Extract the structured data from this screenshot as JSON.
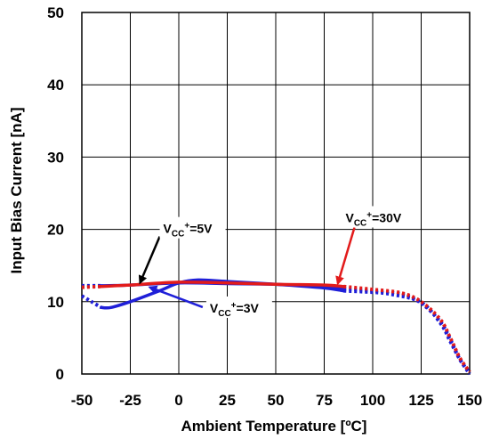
{
  "chart_data": {
    "type": "line",
    "title": "",
    "xlabel": "Ambient Temperature [ºC]",
    "ylabel": "Input Bias Current [nA]",
    "xlim": [
      -50,
      150
    ],
    "ylim": [
      0,
      50
    ],
    "xticks": [
      -50,
      -25,
      0,
      25,
      50,
      75,
      100,
      125,
      150
    ],
    "yticks": [
      0,
      10,
      20,
      30,
      40,
      50
    ],
    "grid": true,
    "series": [
      {
        "name": "VCC+=3V",
        "color": "#1f1fd8",
        "solid": [
          [
            -40,
            9.2
          ],
          [
            -35,
            9.2
          ],
          [
            -25,
            10.0
          ],
          [
            -10,
            11.5
          ],
          [
            0,
            12.6
          ],
          [
            10,
            13.0
          ],
          [
            25,
            12.8
          ],
          [
            50,
            12.4
          ],
          [
            75,
            11.9
          ],
          [
            85,
            11.5
          ]
        ],
        "dotted": [
          [
            -50,
            10.8
          ],
          [
            -45,
            10.0
          ],
          [
            -40,
            9.2
          ],
          [
            85,
            11.5
          ],
          [
            100,
            11.3
          ],
          [
            110,
            11.0
          ],
          [
            125,
            9.9
          ],
          [
            135,
            7.0
          ],
          [
            140,
            4.5
          ],
          [
            145,
            2.0
          ],
          [
            150,
            0.0
          ]
        ]
      },
      {
        "name": "VCC+=5V",
        "color": "#1f1fd8",
        "solid": [
          [
            -40,
            12.2
          ],
          [
            -25,
            12.3
          ],
          [
            0,
            12.6
          ],
          [
            25,
            12.5
          ],
          [
            50,
            12.4
          ],
          [
            75,
            12.0
          ],
          [
            85,
            11.8
          ]
        ],
        "dotted": [
          [
            -50,
            12.2
          ],
          [
            -40,
            12.2
          ],
          [
            85,
            11.8
          ],
          [
            100,
            11.5
          ],
          [
            115,
            11.0
          ],
          [
            125,
            9.8
          ],
          [
            135,
            7.2
          ],
          [
            140,
            4.8
          ],
          [
            145,
            2.0
          ],
          [
            150,
            0.2
          ]
        ]
      },
      {
        "name": "VCC+=30V",
        "color": "#e21b1b",
        "solid": [
          [
            -40,
            12.1
          ],
          [
            -25,
            12.3
          ],
          [
            0,
            12.7
          ],
          [
            25,
            12.6
          ],
          [
            50,
            12.4
          ],
          [
            75,
            12.3
          ],
          [
            85,
            12.1
          ]
        ],
        "dotted": [
          [
            -50,
            12.0
          ],
          [
            -40,
            12.1
          ],
          [
            85,
            12.1
          ],
          [
            100,
            11.7
          ],
          [
            115,
            11.2
          ],
          [
            125,
            10.0
          ],
          [
            135,
            7.5
          ],
          [
            140,
            5.0
          ],
          [
            145,
            2.2
          ],
          [
            150,
            0.3
          ]
        ]
      }
    ],
    "annotations": [
      {
        "id": "5v",
        "base": "V",
        "sub": "CC",
        "sup": "+",
        "tail": "=5V",
        "tx": -8,
        "ty": 19.5,
        "ax": -20,
        "ay": 12.6,
        "arrow_color": "#000000"
      },
      {
        "id": "30v",
        "base": "V",
        "sub": "CC",
        "sup": "+",
        "tail": "=30V",
        "tx": 86,
        "ty": 21.0,
        "ax": 82,
        "ay": 12.5,
        "arrow_color": "#e21b1b"
      },
      {
        "id": "3v",
        "base": "V",
        "sub": "CC",
        "sup": "+",
        "tail": "=3V",
        "tx": 16,
        "ty": 8.5,
        "ax": -15,
        "ay": 12.0,
        "arrow_color": "#1f1fd8"
      }
    ]
  }
}
